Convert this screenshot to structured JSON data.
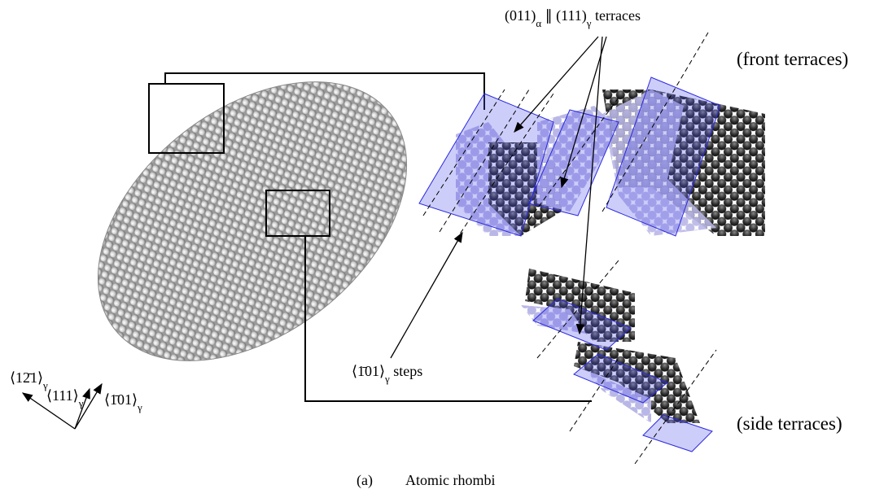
{
  "annotations": {
    "terraces": [
      "(011)",
      "α",
      " ∥ (111)",
      "γ",
      " terraces"
    ],
    "front": "(front terraces)",
    "side": "(side terraces)",
    "steps": [
      "⟨1̄01⟩",
      "γ",
      " steps"
    ]
  },
  "axes": {
    "a": [
      "⟨12̄1⟩",
      "γ"
    ],
    "b": [
      "⟨111⟩",
      "γ"
    ],
    "c": [
      "⟨1̄01⟩",
      "γ"
    ]
  },
  "caption": {
    "label": "(a)",
    "text": "Atomic rhombi"
  }
}
